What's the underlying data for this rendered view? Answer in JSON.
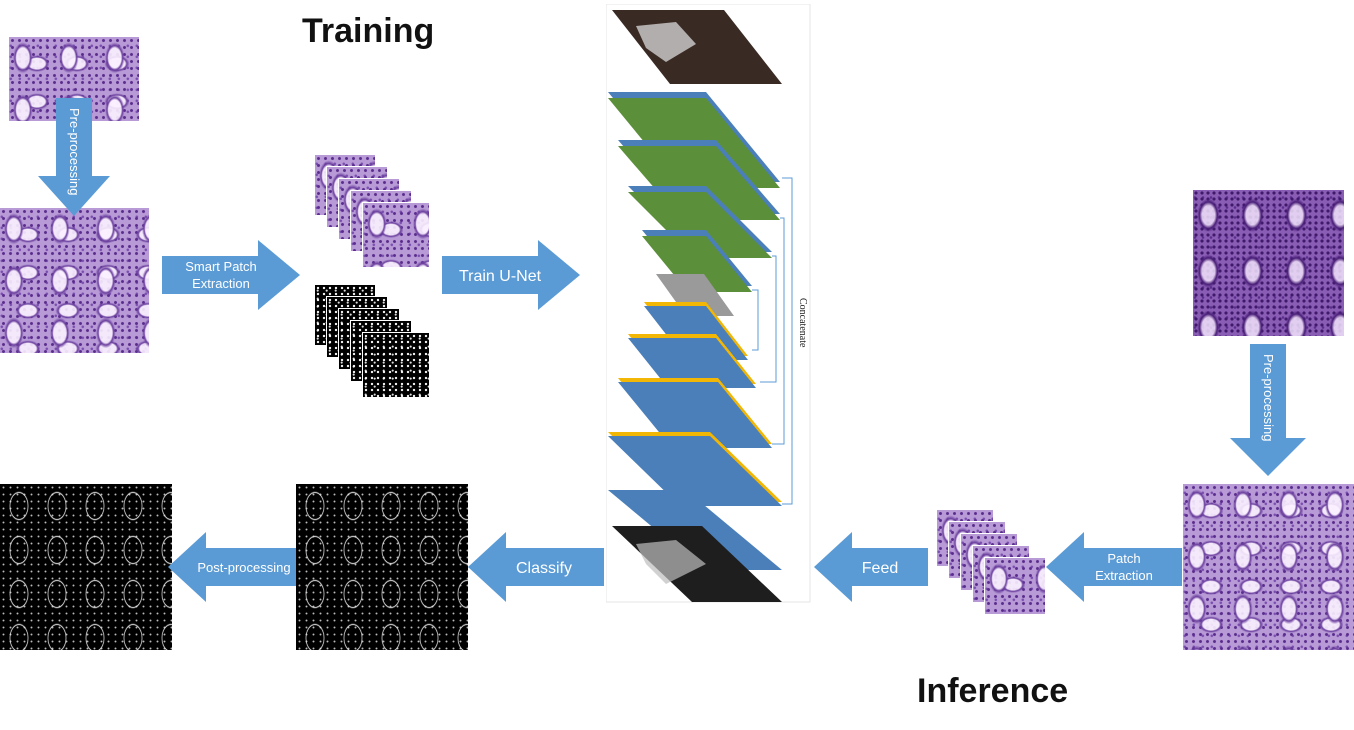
{
  "headings": {
    "training": "Training",
    "inference": "Inference"
  },
  "arrows": {
    "preprocessing_training": "Pre-processing",
    "smart_patch_line1": "Smart Patch",
    "smart_patch_line2": "Extraction",
    "train_unet": "Train U-Net",
    "preprocessing_inference": "Pre-processing",
    "patch_line1": "Patch",
    "patch_line2": "Extraction",
    "feed": "Feed",
    "classify": "Classify",
    "postprocessing": "Post-processing"
  },
  "network": {
    "concatenate_label": "Concatenate"
  },
  "colors": {
    "arrow_blue": "#5b9bd5",
    "layer_green": "#5b8f3a",
    "layer_blue": "#4a7fba",
    "layer_yellow": "#f2b705",
    "layer_gray": "#9a9a9a"
  }
}
